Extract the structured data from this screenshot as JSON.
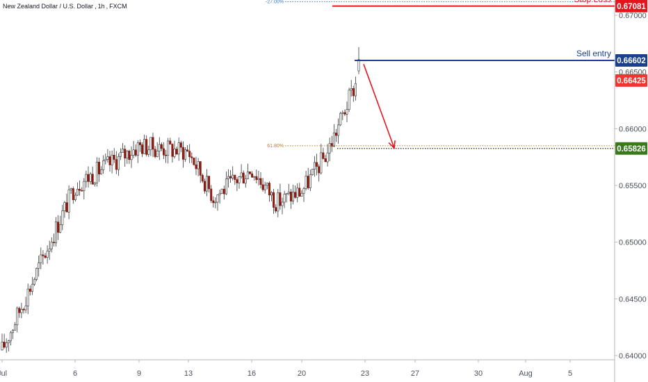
{
  "header": {
    "symbol": "New Zealand Dollar / U.S. Dollar",
    "interval": "1h",
    "exchange": "FXCM"
  },
  "colors": {
    "bull_candle": "#ffffff",
    "bear_candle": "#8b1a10",
    "wick": "#333333",
    "stop_loss": "#e8141c",
    "sell_entry": "#1a3f8f",
    "target": "#3a7a1c",
    "current_price": "#f0342f",
    "fib_upper": "#3b79c9",
    "fib_lower": "#c47a1e",
    "arrow": "#e8141c"
  },
  "chart_data": {
    "type": "candlestick",
    "title": "New Zealand Dollar / U.S. Dollar, 1h, FXCM",
    "xlabel": "",
    "ylabel": "",
    "ylim": [
      0.6393,
      0.6725
    ],
    "x_ticks": [
      "Jul",
      "6",
      "9",
      "13",
      "16",
      "20",
      "23",
      "27",
      "30",
      "Aug",
      "5"
    ],
    "y_ticks": [
      "0.64000",
      "0.64500",
      "0.65000",
      "0.65500",
      "0.66000",
      "0.66500",
      "0.67000"
    ],
    "price_path": [
      {
        "x": "Jul",
        "y": 0.6405
      },
      {
        "x": "6",
        "y": 0.655
      },
      {
        "x": "9",
        "y": 0.6585
      },
      {
        "x": "13",
        "y": 0.658
      },
      {
        "x": "13+",
        "y": 0.654
      },
      {
        "x": "16",
        "y": 0.6565
      },
      {
        "x": "16+",
        "y": 0.6535
      },
      {
        "x": "20",
        "y": 0.6545
      },
      {
        "x": "20+",
        "y": 0.6578
      },
      {
        "x": "23",
        "y": 0.666
      }
    ],
    "levels": [
      {
        "name": "Stop Loss",
        "value": 0.67081,
        "label": "0.67081"
      },
      {
        "name": "Sell entry",
        "value": 0.66602,
        "label": "0.66602"
      },
      {
        "name": "",
        "value": 0.66425,
        "label": "0.66425"
      },
      {
        "name": "",
        "value": 0.65826,
        "label": "0.65826"
      }
    ],
    "fib_levels": [
      {
        "label": "-27.00%",
        "value": 0.6712
      },
      {
        "label": "61.80%",
        "value": 0.6585
      }
    ],
    "annotations": [
      {
        "type": "arrow",
        "from": {
          "x": "23",
          "y": 0.666
        },
        "to": {
          "x": "27",
          "y": 0.6583
        }
      }
    ],
    "grid": false
  }
}
